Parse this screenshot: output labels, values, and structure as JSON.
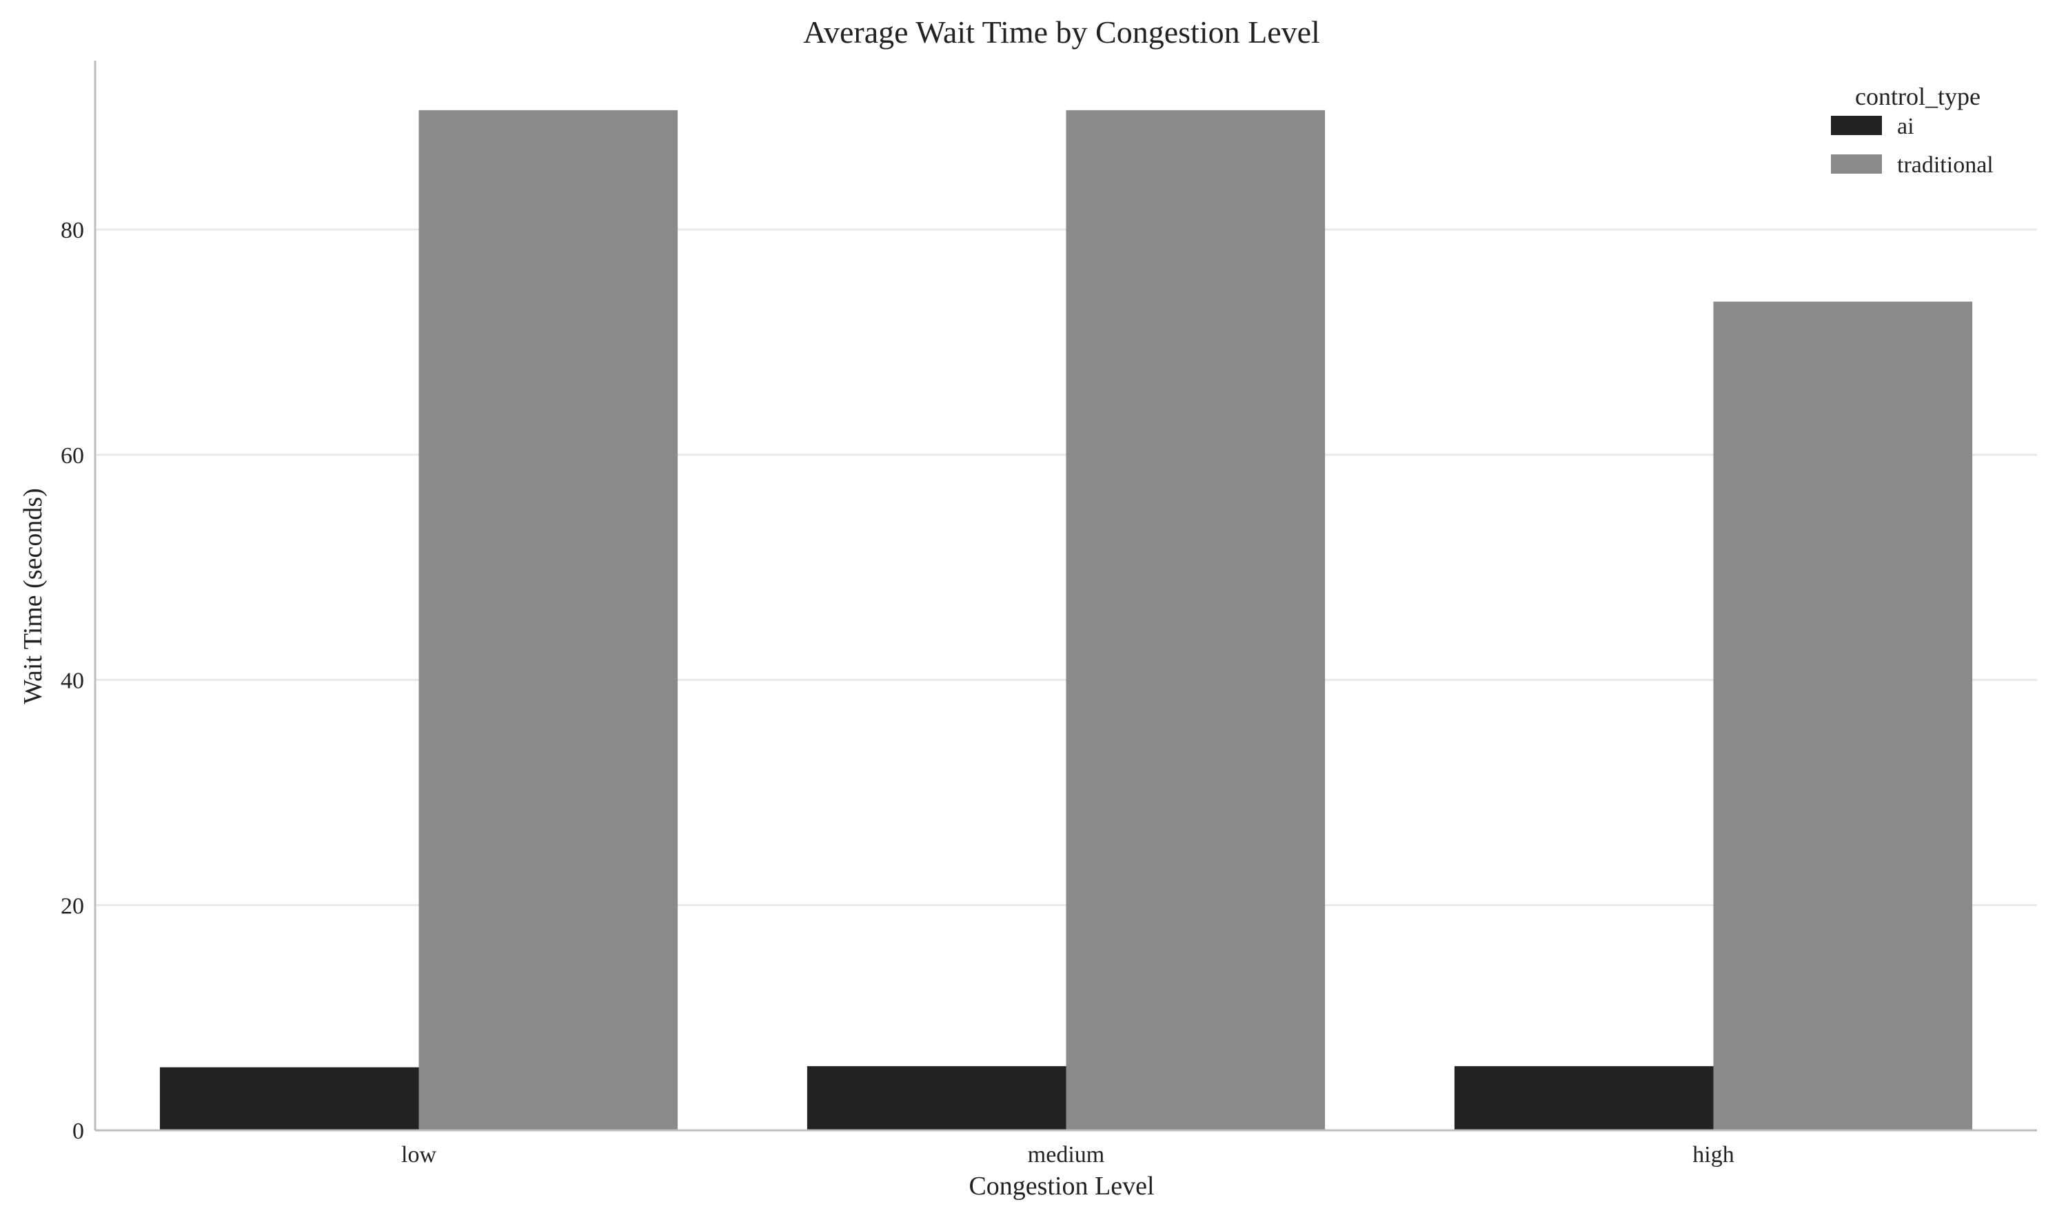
{
  "chart_data": {
    "type": "bar",
    "title": "Average Wait Time by Congestion Level",
    "xlabel": "Congestion Level",
    "ylabel": "Wait Time (seconds)",
    "categories": [
      "low",
      "medium",
      "high"
    ],
    "series": [
      {
        "name": "ai",
        "values": [
          5.6,
          5.7,
          5.7
        ],
        "color": "#222222"
      },
      {
        "name": "traditional",
        "values": [
          90.6,
          90.6,
          73.6
        ],
        "color": "#8a8a8a"
      }
    ],
    "ylim": [
      0,
      95
    ],
    "yticks": [
      0,
      20,
      40,
      60,
      80
    ],
    "grid": "horizontal",
    "legend": {
      "title": "control_type",
      "position": "top-right"
    }
  }
}
